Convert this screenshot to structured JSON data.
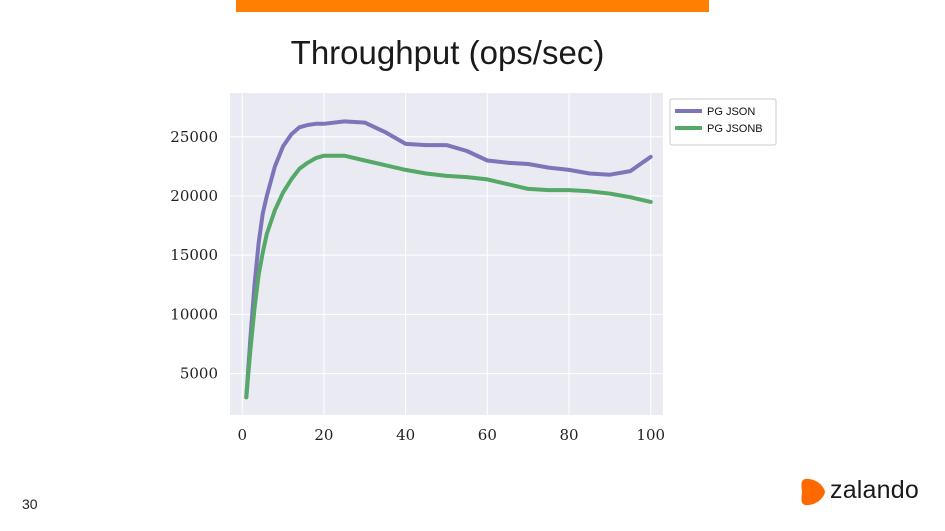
{
  "slide": {
    "title": "Throughput (ops/sec)",
    "number": "30",
    "brand": "zalando",
    "accent_color": "#ff7f00",
    "brand_color": "#ff6900"
  },
  "chart_data": {
    "type": "line",
    "title": "",
    "xlabel": "",
    "ylabel": "",
    "xlim": [
      -3,
      103
    ],
    "ylim": [
      1500,
      28700
    ],
    "x_ticks": [
      0,
      20,
      40,
      60,
      80,
      100
    ],
    "y_ticks": [
      5000,
      10000,
      15000,
      20000,
      25000
    ],
    "grid": true,
    "background": "#eaeaf2",
    "legend_position": "outside-right-top",
    "series": [
      {
        "name": "PG JSON",
        "color": "#7d74b9",
        "x": [
          1,
          2,
          3,
          4,
          5,
          6,
          8,
          10,
          12,
          14,
          16,
          18,
          20,
          25,
          30,
          35,
          40,
          45,
          50,
          55,
          60,
          65,
          70,
          75,
          80,
          85,
          90,
          95,
          100
        ],
        "y": [
          3000,
          8000,
          12500,
          16000,
          18500,
          20000,
          22500,
          24200,
          25200,
          25800,
          26000,
          26100,
          26100,
          26300,
          26200,
          25400,
          24400,
          24300,
          24300,
          23800,
          23000,
          22800,
          22700,
          22400,
          22200,
          21900,
          21800,
          22100,
          23300
        ]
      },
      {
        "name": "PG JSONB",
        "color": "#55a868",
        "x": [
          1,
          2,
          3,
          4,
          5,
          6,
          8,
          10,
          12,
          14,
          16,
          18,
          20,
          25,
          30,
          35,
          40,
          45,
          50,
          55,
          60,
          65,
          70,
          75,
          80,
          85,
          90,
          95,
          100
        ],
        "y": [
          3000,
          7000,
          10500,
          13300,
          15200,
          16800,
          18800,
          20300,
          21400,
          22300,
          22800,
          23200,
          23400,
          23400,
          23000,
          22600,
          22200,
          21900,
          21700,
          21600,
          21400,
          21000,
          20600,
          20500,
          20500,
          20400,
          20200,
          19900,
          19500
        ]
      }
    ]
  }
}
